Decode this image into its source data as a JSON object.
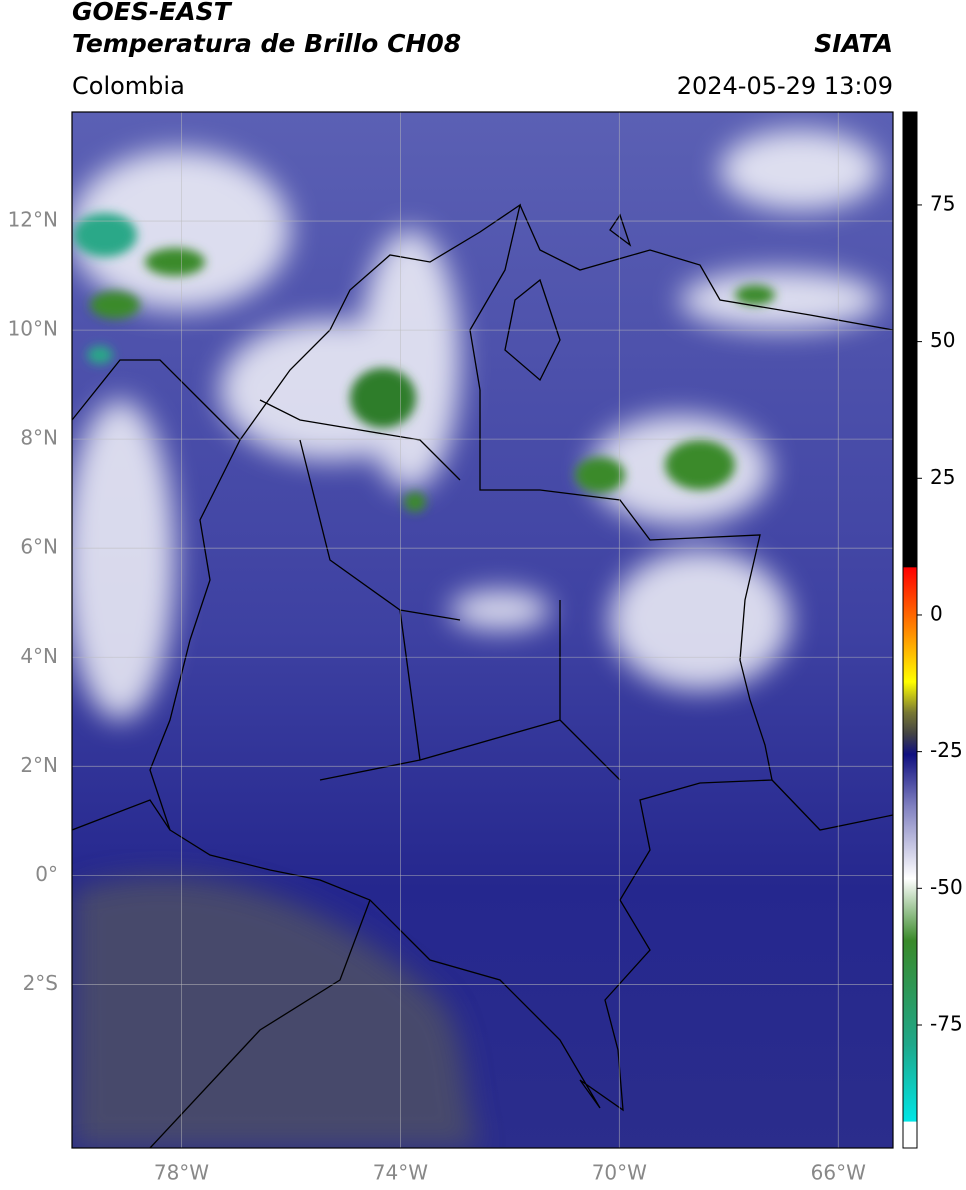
{
  "header": {
    "satellite": "GOES-EAST",
    "product": "Temperatura de Brillo CH08",
    "region": "Colombia",
    "source": "SIATA",
    "timestamp": "2024-05-29 13:09"
  },
  "map": {
    "lon_range": [
      -80,
      -65
    ],
    "lat_range": [
      -5,
      14
    ],
    "lat_labels": [
      {
        "value": 12,
        "label": "12°N"
      },
      {
        "value": 10,
        "label": "10°N"
      },
      {
        "value": 8,
        "label": "8°N"
      },
      {
        "value": 6,
        "label": "6°N"
      },
      {
        "value": 4,
        "label": "4°N"
      },
      {
        "value": 2,
        "label": "2°N"
      },
      {
        "value": 0,
        "label": "0°"
      },
      {
        "value": -2,
        "label": "2°S"
      }
    ],
    "lon_labels": [
      {
        "value": -78,
        "label": "78°W"
      },
      {
        "value": -74,
        "label": "74°W"
      },
      {
        "value": -70,
        "label": "70°W"
      },
      {
        "value": -66,
        "label": "66°W"
      }
    ]
  },
  "colorbar": {
    "limits": [
      -97.5,
      92
    ],
    "ticks": [
      75,
      50,
      25,
      0,
      -25,
      -50,
      -75
    ]
  }
}
